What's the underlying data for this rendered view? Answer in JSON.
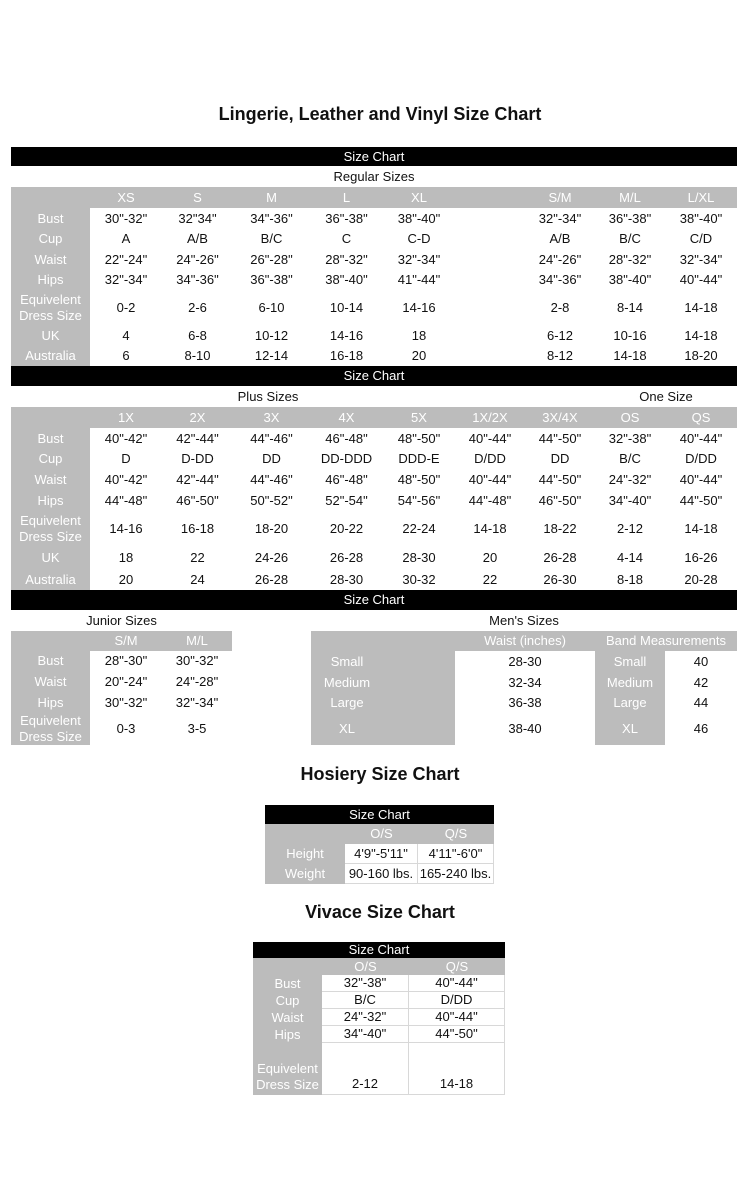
{
  "title": "Lingerie, Leather and Vinyl Size Chart",
  "regular": {
    "banner": "Size Chart",
    "section_label": "Regular Sizes",
    "columns": [
      "XS",
      "S",
      "M",
      "L",
      "XL",
      "",
      "S/M",
      "M/L",
      "L/XL"
    ],
    "rows": [
      {
        "label": "Bust",
        "values": [
          "30\"-32\"",
          "32\"34\"",
          "34\"-36\"",
          "36\"-38\"",
          "38\"-40\"",
          "",
          "32\"-34\"",
          "36\"-38\"",
          "38\"-40\""
        ]
      },
      {
        "label": "Cup",
        "values": [
          "A",
          "A/B",
          "B/C",
          "C",
          "C-D",
          "",
          "A/B",
          "B/C",
          "C/D"
        ]
      },
      {
        "label": "Waist",
        "values": [
          "22\"-24\"",
          "24\"-26\"",
          "26\"-28\"",
          "28\"-32\"",
          "32\"-34\"",
          "",
          "24\"-26\"",
          "28\"-32\"",
          "32\"-34\""
        ]
      },
      {
        "label": "Hips",
        "values": [
          "32\"-34\"",
          "34\"-36\"",
          "36\"-38\"",
          "38\"-40\"",
          "41\"-44\"",
          "",
          "34\"-36\"",
          "38\"-40\"",
          "40\"-44\""
        ]
      },
      {
        "label": "Equivelent Dress Size",
        "values": [
          "0-2",
          "2-6",
          "6-10",
          "10-14",
          "14-16",
          "",
          "2-8",
          "8-14",
          "14-18"
        ]
      },
      {
        "label": "UK",
        "values": [
          "4",
          "6-8",
          "10-12",
          "14-16",
          "18",
          "",
          "6-12",
          "10-16",
          "14-18"
        ]
      },
      {
        "label": "Australia",
        "values": [
          "6",
          "8-10",
          "12-14",
          "16-18",
          "20",
          "",
          "8-12",
          "14-18",
          "18-20"
        ]
      }
    ]
  },
  "plus": {
    "banner": "Size Chart",
    "section_label": "Plus Sizes",
    "one_size_label": "One Size",
    "columns": [
      "1X",
      "2X",
      "3X",
      "4X",
      "5X",
      "1X/2X",
      "3X/4X",
      "OS",
      "QS"
    ],
    "rows": [
      {
        "label": "Bust",
        "values": [
          "40\"-42\"",
          "42\"-44\"",
          "44\"-46\"",
          "46\"-48\"",
          "48\"-50\"",
          "40\"-44\"",
          "44\"-50\"",
          "32\"-38\"",
          "40\"-44\""
        ]
      },
      {
        "label": "Cup",
        "values": [
          "D",
          "D-DD",
          "DD",
          "DD-DDD",
          "DDD-E",
          "D/DD",
          "DD",
          "B/C",
          "D/DD"
        ]
      },
      {
        "label": "Waist",
        "values": [
          "40\"-42\"",
          "42\"-44\"",
          "44\"-46\"",
          "46\"-48\"",
          "48\"-50\"",
          "40\"-44\"",
          "44\"-50\"",
          "24\"-32\"",
          "40\"-44\""
        ]
      },
      {
        "label": "Hips",
        "values": [
          "44\"-48\"",
          "46\"-50\"",
          "50\"-52\"",
          "52\"-54\"",
          "54\"-56\"",
          "44\"-48\"",
          "46\"-50\"",
          "34\"-40\"",
          "44\"-50\""
        ]
      },
      {
        "label": "Equivelent Dress Size",
        "values": [
          "14-16",
          "16-18",
          "18-20",
          "20-22",
          "22-24",
          "14-18",
          "18-22",
          "2-12",
          "14-18"
        ]
      },
      {
        "label": "UK",
        "values": [
          "18",
          "22",
          "24-26",
          "26-28",
          "28-30",
          "20",
          "26-28",
          "4-14",
          "16-26"
        ]
      },
      {
        "label": "Australia",
        "values": [
          "20",
          "24",
          "26-28",
          "28-30",
          "30-32",
          "22",
          "26-30",
          "8-18",
          "20-28"
        ]
      }
    ]
  },
  "third_banner": "Size Chart",
  "junior": {
    "section_label": "Junior Sizes",
    "columns": [
      "S/M",
      "M/L"
    ],
    "rows": [
      {
        "label": "Bust",
        "values": [
          "28\"-30\"",
          "30\"-32\""
        ]
      },
      {
        "label": "Waist",
        "values": [
          "20\"-24\"",
          "24\"-28\""
        ]
      },
      {
        "label": "Hips",
        "values": [
          "30\"-32\"",
          "32\"-34\""
        ]
      },
      {
        "label": "Equivelent Dress Size",
        "values": [
          "0-3",
          "3-5"
        ]
      }
    ]
  },
  "mens": {
    "section_label": "Men's Sizes",
    "waist_header": "Waist (inches)",
    "band_header": "Band Measurements",
    "rows": [
      {
        "label": "Small",
        "waist": "28-30",
        "band_label": "Small",
        "band": "40"
      },
      {
        "label": "Medium",
        "waist": "32-34",
        "band_label": "Medium",
        "band": "42"
      },
      {
        "label": "Large",
        "waist": "36-38",
        "band_label": "Large",
        "band": "44"
      },
      {
        "label": "XL",
        "waist": "38-40",
        "band_label": "XL",
        "band": "46"
      }
    ]
  },
  "hosiery": {
    "title": "Hosiery Size Chart",
    "banner": "Size Chart",
    "columns": [
      "O/S",
      "Q/S"
    ],
    "rows": [
      {
        "label": "Height",
        "values": [
          "4'9\"-5'11\"",
          "4'11\"-6'0\""
        ]
      },
      {
        "label": "Weight",
        "values": [
          "90-160 lbs.",
          "165-240 lbs."
        ]
      }
    ]
  },
  "vivace": {
    "title": "Vivace Size Chart",
    "banner": "Size Chart",
    "columns": [
      "O/S",
      "Q/S"
    ],
    "rows": [
      {
        "label": "Bust",
        "values": [
          "32\"-38\"",
          "40\"-44\""
        ]
      },
      {
        "label": "Cup",
        "values": [
          "B/C",
          "D/DD"
        ]
      },
      {
        "label": "Waist",
        "values": [
          "24\"-32\"",
          "40\"-44\""
        ]
      },
      {
        "label": "Hips",
        "values": [
          "34\"-40\"",
          "44\"-50\""
        ]
      },
      {
        "label": "Equivelent Dress Size",
        "values": [
          "2-12",
          "14-18"
        ]
      }
    ]
  }
}
